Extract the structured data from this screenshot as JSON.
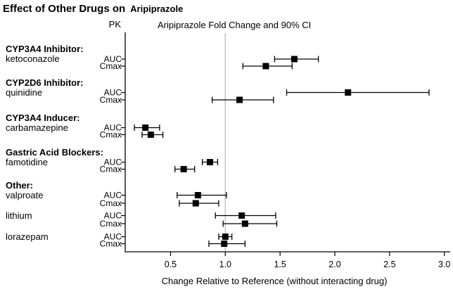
{
  "title": {
    "main": "Effect of Other Drugs on",
    "drug": "Aripiprazole"
  },
  "headers": {
    "pk": "PK",
    "chart": "Aripiprazole Fold Change and 90% CI"
  },
  "chart_data": {
    "type": "forest",
    "title": "Aripiprazole Fold Change and 90% CI",
    "xlabel": "Change Relative to Reference (without interacting drug)",
    "x_ticks": [
      0.5,
      1.0,
      1.5,
      2.0,
      2.5,
      3.0
    ],
    "x_axis_range": [
      0.09,
      3.05
    ],
    "reference_line": 1.0,
    "reference_line_color": "#c4c4c4",
    "marker_color": "#000000",
    "ci_level": "90% CI",
    "groups": [
      {
        "header": "CYP3A4 Inhibitor:",
        "drug": "ketoconazole",
        "rows": [
          {
            "pk": "AUC",
            "estimate": 1.63,
            "ci_low": 1.45,
            "ci_high": 1.85
          },
          {
            "pk": "Cmax",
            "estimate": 1.37,
            "ci_low": 1.16,
            "ci_high": 1.61
          }
        ]
      },
      {
        "header": "CYP2D6 Inhibitor:",
        "drug": "quinidine",
        "rows": [
          {
            "pk": "AUC",
            "estimate": 2.12,
            "ci_low": 1.56,
            "ci_high": 2.86
          },
          {
            "pk": "Cmax",
            "estimate": 1.13,
            "ci_low": 0.88,
            "ci_high": 1.44
          }
        ]
      },
      {
        "header": "CYP3A4 Inducer:",
        "drug": "carbamazepine",
        "rows": [
          {
            "pk": "AUC",
            "estimate": 0.27,
            "ci_low": 0.17,
            "ci_high": 0.4
          },
          {
            "pk": "Cmax",
            "estimate": 0.32,
            "ci_low": 0.24,
            "ci_high": 0.43
          }
        ]
      },
      {
        "header": "Gastric Acid Blockers:",
        "drug": "famotidine",
        "rows": [
          {
            "pk": "AUC",
            "estimate": 0.86,
            "ci_low": 0.79,
            "ci_high": 0.93
          },
          {
            "pk": "Cmax",
            "estimate": 0.62,
            "ci_low": 0.54,
            "ci_high": 0.72
          }
        ]
      },
      {
        "header": "Other:",
        "drug": "valproate",
        "rows": [
          {
            "pk": "AUC",
            "estimate": 0.75,
            "ci_low": 0.56,
            "ci_high": 1.01
          },
          {
            "pk": "Cmax",
            "estimate": 0.73,
            "ci_low": 0.58,
            "ci_high": 0.94
          }
        ]
      },
      {
        "drug": "lithium",
        "rows": [
          {
            "pk": "AUC",
            "estimate": 1.15,
            "ci_low": 0.91,
            "ci_high": 1.46
          },
          {
            "pk": "Cmax",
            "estimate": 1.18,
            "ci_low": 0.98,
            "ci_high": 1.47
          }
        ]
      },
      {
        "drug": "lorazepam",
        "rows": [
          {
            "pk": "AUC",
            "estimate": 1.0,
            "ci_low": 0.94,
            "ci_high": 1.06
          },
          {
            "pk": "Cmax",
            "estimate": 0.99,
            "ci_low": 0.85,
            "ci_high": 1.18
          }
        ]
      }
    ]
  }
}
